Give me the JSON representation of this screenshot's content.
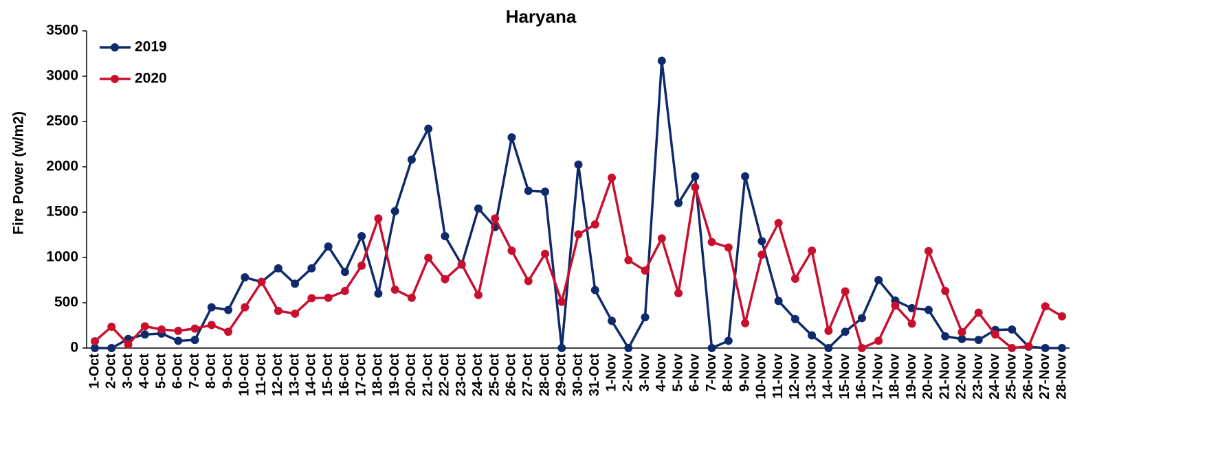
{
  "chart_data": {
    "type": "line",
    "title": "Haryana",
    "y_label": "Fire Power (w/m2)",
    "categories": [
      "1-Oct",
      "2-Oct",
      "3-Oct",
      "4-Oct",
      "5-Oct",
      "6-Oct",
      "7-Oct",
      "8-Oct",
      "9-Oct",
      "10-Oct",
      "11-Oct",
      "12-Oct",
      "13-Oct",
      "14-Oct",
      "15-Oct",
      "16-Oct",
      "17-Oct",
      "18-Oct",
      "19-Oct",
      "20-Oct",
      "21-Oct",
      "22-Oct",
      "23-Oct",
      "24-Oct",
      "25-Oct",
      "26-Oct",
      "27-Oct",
      "28-Oct",
      "29-Oct",
      "30-Oct",
      "31-Oct",
      "1-Nov",
      "2-Nov",
      "3-Nov",
      "4-Nov",
      "5-Nov",
      "6-Nov",
      "7-Nov",
      "8-Nov",
      "9-Nov",
      "10-Nov",
      "11-Nov",
      "12-Nov",
      "13-Nov",
      "14-Nov",
      "15-Nov",
      "16-Nov",
      "17-Nov",
      "18-Nov",
      "19-Nov",
      "20-Nov",
      "21-Nov",
      "22-Nov",
      "23-Nov",
      "24-Nov",
      "25-Nov",
      "26-Nov",
      "27-Nov",
      "28-Nov"
    ],
    "series": [
      {
        "name": "2019",
        "color": "#0f2a6b",
        "values": [
          0,
          0,
          100,
          150,
          160,
          80,
          90,
          450,
          420,
          780,
          730,
          880,
          710,
          880,
          1120,
          840,
          1235,
          600,
          1510,
          2080,
          2420,
          1235,
          920,
          1540,
          1335,
          2325,
          1735,
          1725,
          0,
          2025,
          640,
          300,
          0,
          340,
          3170,
          1600,
          1895,
          0,
          80,
          1895,
          1180,
          520,
          320,
          140,
          0,
          180,
          330,
          750,
          525,
          440,
          420,
          130,
          100,
          90,
          200,
          205,
          15,
          0,
          0
        ]
      },
      {
        "name": "2020",
        "color": "#c8102e",
        "values": [
          75,
          235,
          40,
          240,
          205,
          190,
          215,
          255,
          180,
          450,
          730,
          410,
          380,
          550,
          555,
          630,
          910,
          1430,
          645,
          555,
          995,
          760,
          925,
          585,
          1430,
          1075,
          740,
          1040,
          510,
          1255,
          1365,
          1880,
          970,
          855,
          1210,
          605,
          1775,
          1170,
          1110,
          275,
          1030,
          1380,
          765,
          1075,
          190,
          625,
          0,
          80,
          470,
          270,
          1070,
          630,
          175,
          390,
          150,
          0,
          20,
          460,
          350
        ]
      }
    ],
    "ylim": [
      0,
      3500
    ],
    "yticks": [
      0,
      500,
      1000,
      1500,
      2000,
      2500,
      3000,
      3500
    ],
    "grid": false,
    "legend": "top-left"
  }
}
